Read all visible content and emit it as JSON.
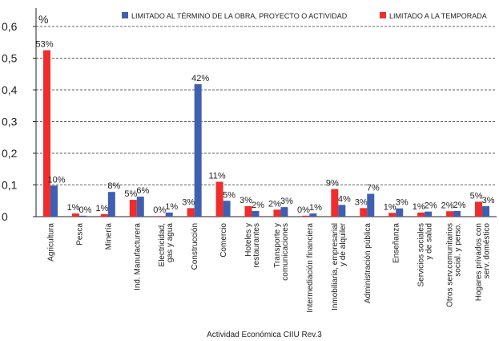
{
  "chart_data": {
    "type": "bar",
    "y_label": "%",
    "x_label": "Actividad Económica CIIU Rev.3",
    "categories": [
      "Agricultura",
      "Pesca",
      "Minería",
      "Ind. Manufacturera",
      "Electricidad,\ngas y agua",
      "Construcción",
      "Comercio",
      "Hoteles y\nrestaurantes",
      "Transporte y\ncomunicaciones",
      "Intermediación financiera",
      "Inmobiliaria, empresarial\ny de alquiler",
      "Administración pública",
      "Enseñanza",
      "Servicios sociales\ny de salud",
      "Otros serv.comunitarios\nsocial. y perso.",
      "Hogares privados con\nserv. doméstico"
    ],
    "series": [
      {
        "name": "LIMITADO A LA TEMPORADA",
        "color": "#ee2d2d",
        "values": [
          0.525,
          0.01,
          0.008,
          0.053,
          0.002,
          0.027,
          0.11,
          0.033,
          0.022,
          0.003,
          0.087,
          0.027,
          0.012,
          0.013,
          0.017,
          0.047
        ],
        "value_labels": [
          "53%",
          "1%",
          "1%",
          "5%",
          "0%",
          "3%",
          "11%",
          "3%",
          "2%",
          "0%",
          "9%",
          "3%",
          "1%",
          "1%",
          "2%",
          "5%"
        ]
      },
      {
        "name": "LIMITADO AL TÉRMINO DE LA OBRA, PROYECTO O ACTIVIDAD",
        "color": "#3f5fb0",
        "values": [
          0.098,
          0.003,
          0.078,
          0.063,
          0.013,
          0.418,
          0.05,
          0.018,
          0.03,
          0.01,
          0.037,
          0.072,
          0.026,
          0.016,
          0.018,
          0.033
        ],
        "value_labels": [
          "10%",
          "0%",
          "8%",
          "6%",
          "1%",
          "42%",
          "5%",
          "2%",
          "3%",
          "1%",
          "4%",
          "7%",
          "3%",
          "2%",
          "2%",
          "3%"
        ]
      }
    ],
    "legend_order": [
      1,
      0
    ],
    "ylim": [
      0,
      0.6
    ],
    "yticks": [
      0,
      {
        "value": 0.1,
        "label": "0,1"
      },
      {
        "value": 0.2,
        "label": "0,2"
      },
      {
        "value": 0.3,
        "label": "0,3"
      },
      {
        "value": 0.4,
        "label": "0,4"
      },
      {
        "value": 0.5,
        "label": "0,5"
      },
      {
        "value": 0.6,
        "label": "0,6"
      }
    ],
    "grid": true
  }
}
